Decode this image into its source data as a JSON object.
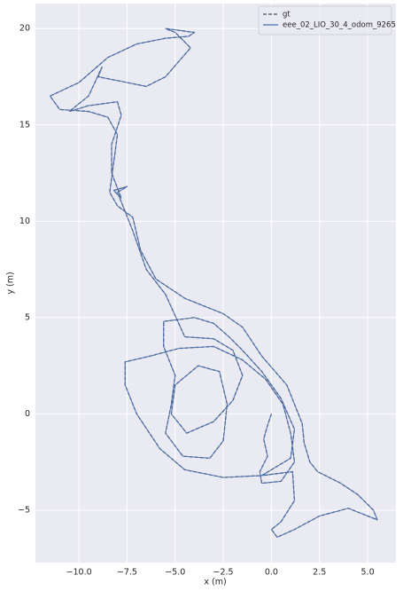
{
  "chart_data": {
    "type": "line",
    "xlabel": "x (m)",
    "ylabel": "y (m)",
    "xlim": [
      -12.26,
      6.47
    ],
    "ylim": [
      -7.72,
      21.3
    ],
    "xticks": [
      {
        "value": -10,
        "label": "−10.0"
      },
      {
        "value": -7.5,
        "label": "−7.5"
      },
      {
        "value": -5,
        "label": "−5.0"
      },
      {
        "value": -2.5,
        "label": "−2.5"
      },
      {
        "value": 0,
        "label": "0.0"
      },
      2.5,
      {
        "value": 5,
        "label": "5.0"
      }
    ],
    "yticks": [
      {
        "value": -5,
        "label": "−5"
      },
      0,
      5,
      10,
      15,
      20
    ],
    "grid": true,
    "legend": "upper right",
    "series": [
      {
        "name": "gt",
        "color": "#4a4f63",
        "linestyle": "dashed",
        "x": [
          0,
          -0.2,
          -0.4,
          -0.2,
          -0.6,
          -0.5,
          0.5,
          1.2,
          1.0,
          0.6,
          -0.3,
          -1.5,
          -3.0,
          -4.8,
          -6.3,
          -7.6,
          -7.6,
          -7.0,
          -5.8,
          -4.5,
          -2.5,
          -0.5,
          1.0,
          1.2,
          0.5,
          -0.5,
          -1.5,
          -2.2,
          -3.0,
          -4.0,
          -5.6,
          -5.6,
          -5.0,
          -5.2,
          -5.5,
          -4.6,
          -3.2,
          -2.5,
          -2.3,
          -2.7,
          -3.8,
          -5.0,
          -5.2,
          -4.4,
          -3.0,
          -2.0,
          -1.5,
          -2.0,
          -3.0,
          -4.5,
          -5.5,
          -6.5,
          -7.2,
          -7.8,
          -8.0,
          -7.5,
          -8.2,
          -7.8,
          -8.3,
          -8.3,
          -7.8,
          -8.0,
          -9.5,
          -10.5,
          -9.5,
          -8.8,
          -9.0,
          -6.5,
          -5.5,
          -4.2,
          -5.0,
          -5.5,
          -4.0,
          -4.3,
          -5.5,
          -7.0,
          -8.5,
          -10.0,
          -11.5,
          -11.0,
          -9.5,
          -8.5,
          -8.0,
          -8.2,
          -8.4,
          -8.0,
          -7.2,
          -6.8,
          -6.0,
          -4.5,
          -2.5,
          -1.5,
          -0.5,
          0.8,
          1.6,
          1.7,
          2.0,
          2.4,
          3.6,
          4.5,
          5.3,
          5.5,
          5.0,
          4.0,
          2.5,
          1.2,
          0.3,
          0,
          0.5,
          1.2,
          1.1,
          -0.5
        ],
        "values": [
          0,
          -0.6,
          -1.3,
          -2.2,
          -3.0,
          -3.6,
          -3.5,
          -2.5,
          -1.0,
          0.5,
          1.8,
          2.8,
          3.5,
          3.4,
          3.0,
          2.7,
          1.5,
          0,
          -1.8,
          -2.9,
          -3.3,
          -3.2,
          -2.3,
          -0.8,
          0.8,
          2.2,
          3.3,
          4.0,
          4.7,
          5.0,
          4.8,
          3.5,
          2.0,
          0.5,
          -1.0,
          -2.2,
          -2.3,
          -1.4,
          0.5,
          2.2,
          2.5,
          1.5,
          0,
          -1.0,
          -0.4,
          0.7,
          2.0,
          3.3,
          3.9,
          4.0,
          6.2,
          7.5,
          9.5,
          11.0,
          11.5,
          11.8,
          11.6,
          11.2,
          12.5,
          14.0,
          15.5,
          16.2,
          16.0,
          15.7,
          16.5,
          18.0,
          17.5,
          17.0,
          17.5,
          19.0,
          19.8,
          20.0,
          19.8,
          19.6,
          19.5,
          19.2,
          18.5,
          17.2,
          16.5,
          15.8,
          15.7,
          15.4,
          14.5,
          13.0,
          11.5,
          10.8,
          10.2,
          8.5,
          7.0,
          6.0,
          5.2,
          4.5,
          3.0,
          1.5,
          -0.5,
          -1.5,
          -2.5,
          -3.0,
          -3.6,
          -4.2,
          -5.0,
          -5.5,
          -5.3,
          -4.9,
          -5.3,
          -6.0,
          -6.4,
          -6.0,
          -5.6,
          -4.5,
          -3.0,
          -3.2
        ]
      },
      {
        "name": "eee_02_LIO_30_4_odom_9265",
        "color": "#4c72b0",
        "linestyle": "solid",
        "x": [
          0,
          -0.2,
          -0.4,
          -0.2,
          -0.6,
          -0.5,
          0.5,
          1.2,
          1.0,
          0.6,
          -0.3,
          -1.5,
          -3.0,
          -4.8,
          -6.3,
          -7.6,
          -7.6,
          -7.0,
          -5.8,
          -4.5,
          -2.5,
          -0.5,
          1.0,
          1.2,
          0.5,
          -0.5,
          -1.5,
          -2.2,
          -3.0,
          -4.0,
          -5.6,
          -5.6,
          -5.0,
          -5.2,
          -5.5,
          -4.6,
          -3.2,
          -2.5,
          -2.3,
          -2.7,
          -3.8,
          -5.0,
          -5.2,
          -4.4,
          -3.0,
          -2.0,
          -1.5,
          -2.0,
          -3.0,
          -4.5,
          -5.5,
          -6.5,
          -7.2,
          -7.8,
          -8.0,
          -7.5,
          -8.2,
          -7.8,
          -8.3,
          -8.3,
          -7.8,
          -8.0,
          -9.5,
          -10.5,
          -9.5,
          -8.8,
          -9.0,
          -6.5,
          -5.5,
          -4.2,
          -5.0,
          -5.5,
          -4.0,
          -4.3,
          -5.5,
          -7.0,
          -8.5,
          -10.0,
          -11.5,
          -11.0,
          -9.5,
          -8.5,
          -8.0,
          -8.2,
          -8.4,
          -8.0,
          -7.2,
          -6.8,
          -6.0,
          -4.5,
          -2.5,
          -1.5,
          -0.5,
          0.8,
          1.6,
          1.7,
          2.0,
          2.4,
          3.6,
          4.5,
          5.3,
          5.5,
          5.0,
          4.0,
          2.5,
          1.2,
          0.3,
          0,
          0.5,
          1.2,
          1.1,
          -0.5
        ],
        "values": [
          0,
          -0.6,
          -1.3,
          -2.2,
          -3.0,
          -3.6,
          -3.5,
          -2.5,
          -1.0,
          0.5,
          1.8,
          2.8,
          3.5,
          3.4,
          3.0,
          2.7,
          1.5,
          0,
          -1.8,
          -2.9,
          -3.3,
          -3.2,
          -2.3,
          -0.8,
          0.8,
          2.2,
          3.3,
          4.0,
          4.7,
          5.0,
          4.8,
          3.5,
          2.0,
          0.5,
          -1.0,
          -2.2,
          -2.3,
          -1.4,
          0.5,
          2.2,
          2.5,
          1.5,
          0,
          -1.0,
          -0.4,
          0.7,
          2.0,
          3.3,
          3.9,
          4.0,
          6.2,
          7.5,
          9.5,
          11.0,
          11.5,
          11.8,
          11.6,
          11.2,
          12.5,
          14.0,
          15.5,
          16.2,
          16.0,
          15.7,
          16.5,
          18.0,
          17.5,
          17.0,
          17.5,
          19.0,
          19.8,
          20.0,
          19.8,
          19.6,
          19.5,
          19.2,
          18.5,
          17.2,
          16.5,
          15.8,
          15.7,
          15.4,
          14.5,
          13.0,
          11.5,
          10.8,
          10.2,
          8.5,
          7.0,
          6.0,
          5.2,
          4.5,
          3.0,
          1.5,
          -0.5,
          -1.5,
          -2.5,
          -3.0,
          -3.6,
          -4.2,
          -5.0,
          -5.5,
          -5.3,
          -4.9,
          -5.3,
          -6.0,
          -6.4,
          -6.0,
          -5.6,
          -4.5,
          -3.0,
          -3.2
        ]
      }
    ]
  }
}
